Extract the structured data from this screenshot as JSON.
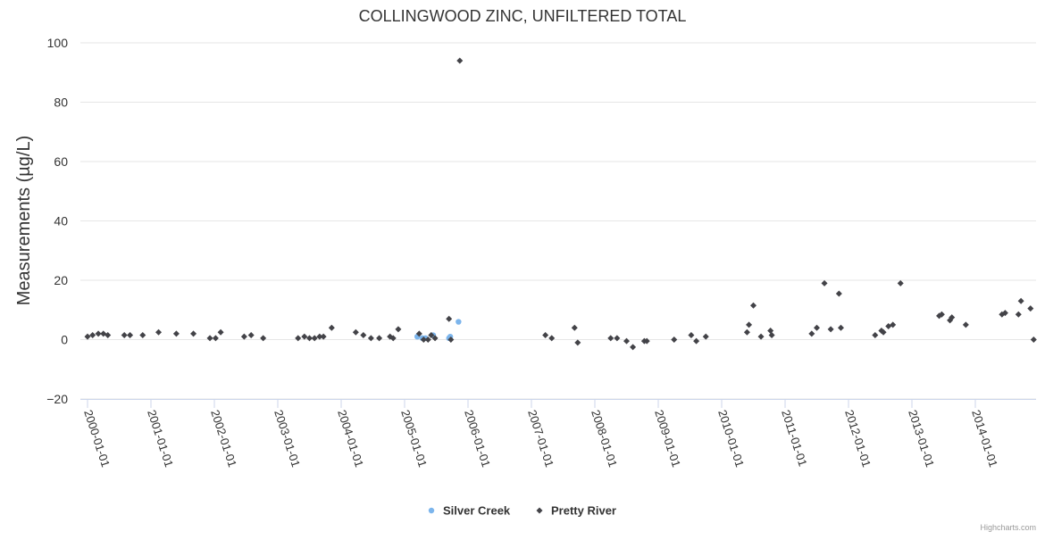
{
  "chart_data": {
    "type": "scatter",
    "title": "COLLINGWOOD ZINC, UNFILTERED TOTAL",
    "xlabel": "",
    "ylabel": "Measurements (µg/L)",
    "ylim": [
      -20,
      100
    ],
    "yticks": [
      "100",
      "80",
      "60",
      "40",
      "20",
      "0",
      "−20"
    ],
    "xlim": [
      2000.0,
      2015.0
    ],
    "xticks": [
      "2000-01-01",
      "2001-01-01",
      "2002-01-01",
      "2003-01-01",
      "2004-01-01",
      "2005-01-01",
      "2006-01-01",
      "2007-01-01",
      "2008-01-01",
      "2009-01-01",
      "2010-01-01",
      "2011-01-01",
      "2012-01-01",
      "2013-01-01",
      "2014-01-01"
    ],
    "legend_position": "bottom-center",
    "series": [
      {
        "name": "Silver Creek",
        "color": "#7cb5ec",
        "marker": "circle",
        "x": [
          2005.2,
          2005.28,
          2005.33,
          2005.45,
          2005.7,
          2005.72,
          2005.85
        ],
        "y": [
          1.0,
          0.5,
          0.5,
          1.5,
          0.5,
          1.0,
          6.0
        ]
      },
      {
        "name": "Pretty River",
        "color": "#434348",
        "marker": "diamond",
        "x": [
          2000.0,
          2000.08,
          2000.17,
          2000.25,
          2000.32,
          2000.58,
          2000.67,
          2000.87,
          2001.12,
          2001.4,
          2001.67,
          2001.93,
          2002.02,
          2002.1,
          2002.47,
          2002.58,
          2002.77,
          2003.32,
          2003.42,
          2003.5,
          2003.58,
          2003.66,
          2003.72,
          2003.85,
          2004.23,
          2004.35,
          2004.47,
          2004.6,
          2004.77,
          2004.82,
          2004.9,
          2005.23,
          2005.3,
          2005.37,
          2005.42,
          2005.48,
          2005.7,
          2005.73,
          2005.87,
          2007.22,
          2007.32,
          2007.68,
          2007.73,
          2008.25,
          2008.35,
          2008.5,
          2008.6,
          2008.78,
          2008.82,
          2009.25,
          2009.52,
          2009.6,
          2009.75,
          2010.4,
          2010.43,
          2010.5,
          2010.62,
          2010.77,
          2010.79,
          2011.42,
          2011.5,
          2011.62,
          2011.72,
          2011.85,
          2011.88,
          2012.42,
          2012.52,
          2012.55,
          2012.63,
          2012.7,
          2012.82,
          2013.43,
          2013.47,
          2013.6,
          2013.63,
          2013.85,
          2014.42,
          2014.47,
          2014.68,
          2014.72,
          2014.87,
          2014.92
        ],
        "y": [
          1.0,
          1.5,
          2.0,
          2.0,
          1.5,
          1.5,
          1.5,
          1.5,
          2.5,
          2.0,
          2.0,
          0.5,
          0.5,
          2.5,
          1.0,
          1.5,
          0.5,
          0.5,
          1.0,
          0.5,
          0.5,
          1.0,
          1.0,
          4.0,
          2.5,
          1.5,
          0.5,
          0.5,
          1.0,
          0.5,
          3.5,
          2.0,
          0.0,
          0.0,
          1.5,
          0.5,
          7.0,
          0.0,
          94.0,
          1.5,
          0.5,
          4.0,
          -1.0,
          0.5,
          0.5,
          -0.5,
          -2.5,
          -0.5,
          -0.5,
          0.0,
          1.5,
          -0.5,
          1.0,
          2.5,
          5.0,
          11.5,
          1.0,
          3.0,
          1.5,
          2.0,
          4.0,
          19.0,
          3.5,
          15.5,
          4.0,
          1.5,
          3.0,
          2.5,
          4.5,
          5.0,
          19.0,
          8.0,
          8.5,
          6.5,
          7.5,
          5.0,
          8.5,
          9.0,
          8.5,
          13.0,
          10.5,
          0.0
        ]
      }
    ]
  },
  "credits": "Highcharts.com"
}
